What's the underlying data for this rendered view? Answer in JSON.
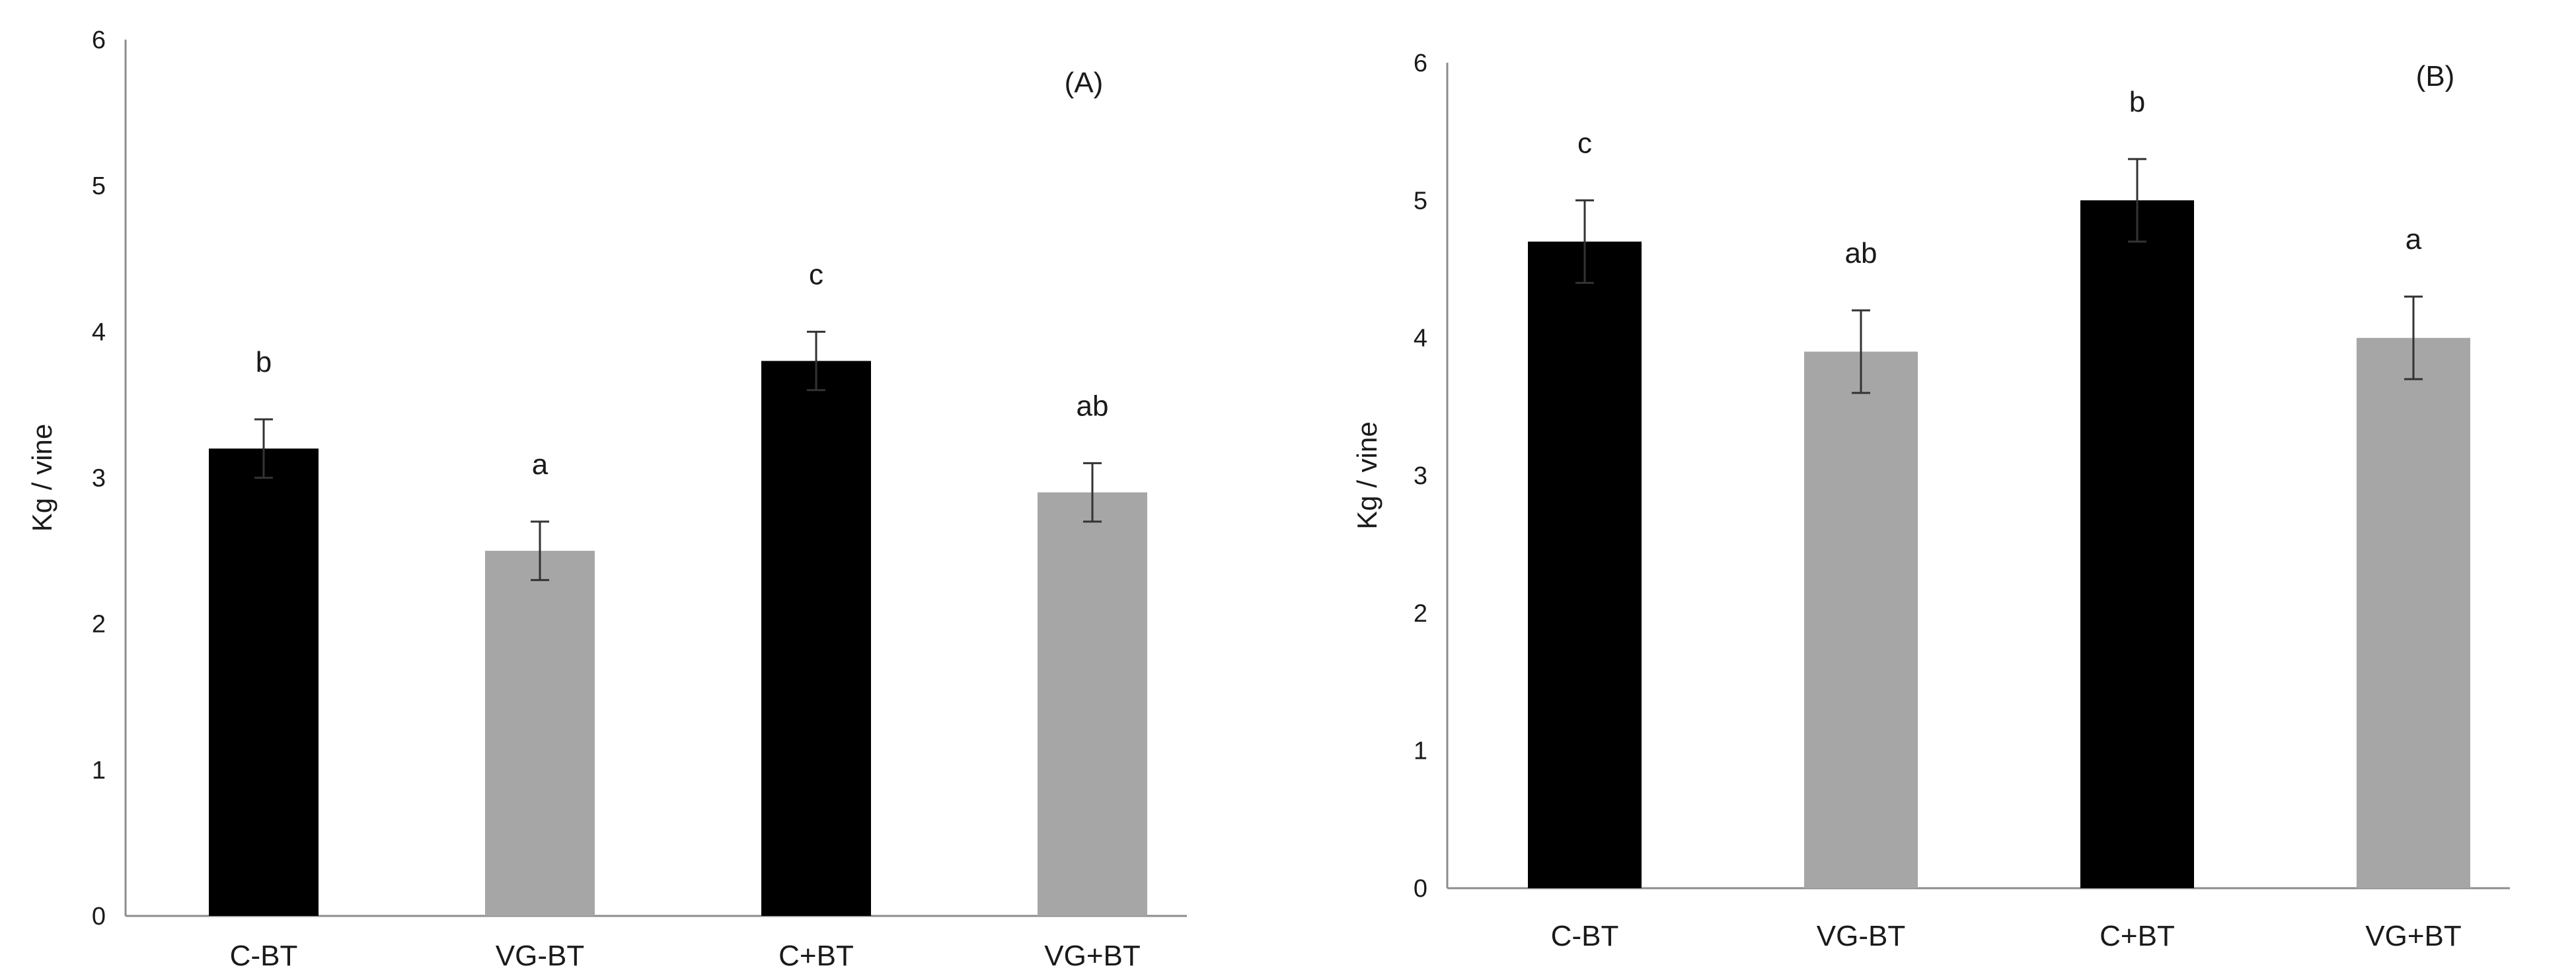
{
  "chart_data": [
    {
      "type": "bar",
      "panel_label": "(A)",
      "categories": [
        "C-BT",
        "VG-BT",
        "C+BT",
        "VG+BT"
      ],
      "values": [
        3.2,
        2.5,
        3.8,
        2.9
      ],
      "errors": [
        0.2,
        0.2,
        0.2,
        0.2
      ],
      "significance": [
        "b",
        "a",
        "c",
        "ab"
      ],
      "colors": [
        "#000000",
        "#a6a6a6",
        "#000000",
        "#a6a6a6"
      ],
      "title": "",
      "xlabel": "",
      "ylabel": "Kg / vine",
      "ylim": [
        0,
        6
      ],
      "yticks": [
        "0",
        "1",
        "2",
        "3",
        "4",
        "5",
        "6"
      ],
      "grid": false
    },
    {
      "type": "bar",
      "panel_label": "(B)",
      "categories": [
        "C-BT",
        "VG-BT",
        "C+BT",
        "VG+BT"
      ],
      "values": [
        4.7,
        3.9,
        5.0,
        4.0
      ],
      "errors": [
        0.3,
        0.3,
        0.3,
        0.3
      ],
      "significance": [
        "c",
        "ab",
        "b",
        "a"
      ],
      "colors": [
        "#000000",
        "#a6a6a6",
        "#000000",
        "#a6a6a6"
      ],
      "title": "",
      "xlabel": "",
      "ylabel": "Kg / vine",
      "ylim": [
        0,
        6
      ],
      "yticks": [
        "0",
        "1",
        "2",
        "3",
        "4",
        "5",
        "6"
      ],
      "grid": false
    }
  ]
}
